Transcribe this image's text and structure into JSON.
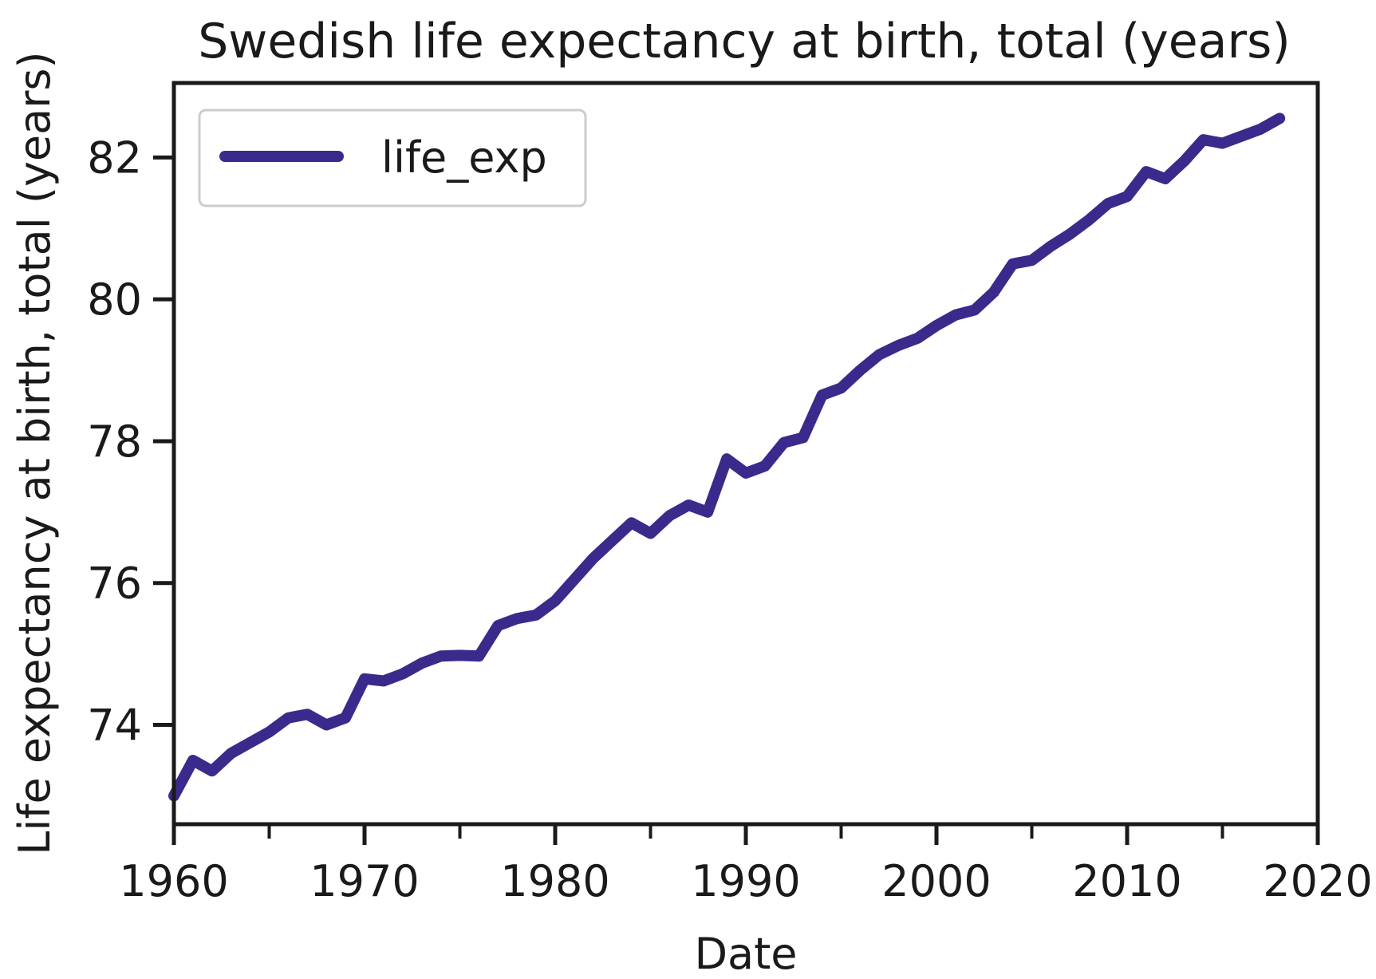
{
  "chart_data": {
    "type": "line",
    "title": "Swedish life expectancy at birth, total (years)",
    "xlabel": "Date",
    "ylabel": "Life expectancy at birth, total (years)",
    "xlim": [
      1960,
      2020
    ],
    "ylim": [
      72.6,
      83.05
    ],
    "xticks": [
      1960,
      1970,
      1980,
      1990,
      2000,
      2010,
      2020
    ],
    "xticks_minor": [
      1965,
      1975,
      1985,
      1995,
      2005,
      2015
    ],
    "yticks": [
      74,
      76,
      78,
      80,
      82
    ],
    "grid": false,
    "legend": {
      "position": "upper-left",
      "entries": [
        "life_exp"
      ]
    },
    "colors": {
      "line": "#3b2a8c",
      "axes": "#1a1a1a",
      "legend_border": "#cccccc"
    },
    "series": [
      {
        "name": "life_exp",
        "x": [
          1960,
          1961,
          1962,
          1963,
          1964,
          1965,
          1966,
          1967,
          1968,
          1969,
          1970,
          1971,
          1972,
          1973,
          1974,
          1975,
          1976,
          1977,
          1978,
          1979,
          1980,
          1981,
          1982,
          1983,
          1984,
          1985,
          1986,
          1987,
          1988,
          1989,
          1990,
          1991,
          1992,
          1993,
          1994,
          1995,
          1996,
          1997,
          1998,
          1999,
          2000,
          2001,
          2002,
          2003,
          2004,
          2005,
          2006,
          2007,
          2008,
          2009,
          2010,
          2011,
          2012,
          2013,
          2014,
          2015,
          2016,
          2017,
          2018
        ],
        "values": [
          73.0,
          73.5,
          73.35,
          73.6,
          73.75,
          73.9,
          74.1,
          74.15,
          74.0,
          74.1,
          74.65,
          74.62,
          74.72,
          74.87,
          74.97,
          74.98,
          74.97,
          75.4,
          75.5,
          75.55,
          75.75,
          76.05,
          76.35,
          76.6,
          76.85,
          76.7,
          76.95,
          77.1,
          77.0,
          77.75,
          77.55,
          77.65,
          77.98,
          78.05,
          78.65,
          78.75,
          79.0,
          79.22,
          79.35,
          79.45,
          79.63,
          79.78,
          79.85,
          80.1,
          80.5,
          80.55,
          80.75,
          80.92,
          81.12,
          81.35,
          81.45,
          81.8,
          81.7,
          81.95,
          82.25,
          82.2,
          82.3,
          82.4,
          82.55
        ]
      }
    ]
  }
}
